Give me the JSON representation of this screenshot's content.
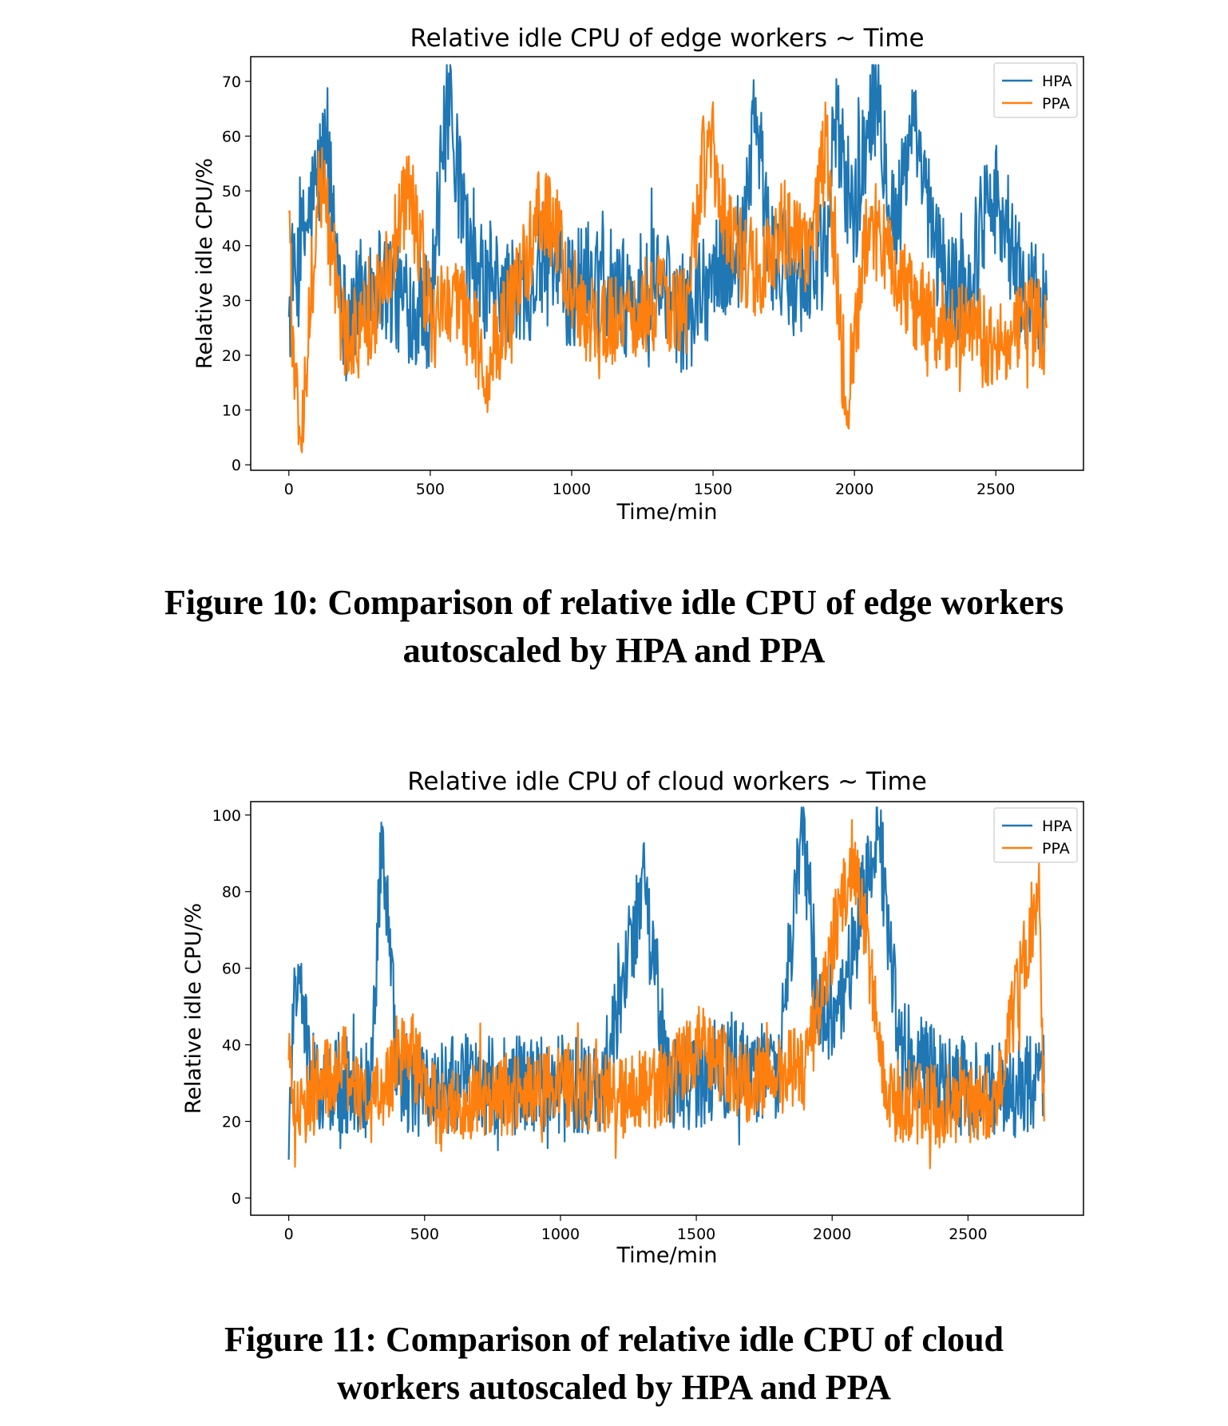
{
  "chart_data": [
    {
      "type": "line",
      "title": "Relative idle CPU of edge workers ~ Time",
      "xlabel": "Time/min",
      "ylabel": "Relative idle CPU/%",
      "xlim": [
        -135,
        2810
      ],
      "ylim": [
        -1,
        74.5
      ],
      "xticks": [
        0,
        500,
        1000,
        1500,
        2000,
        2500
      ],
      "yticks": [
        0,
        10,
        20,
        30,
        40,
        50,
        60,
        70
      ],
      "legend": "top-right",
      "grid": false,
      "n_points": 1100,
      "x_max": 2680,
      "series": [
        {
          "name": "HPA",
          "color": "#1f77b4",
          "anchors": [
            [
              0,
              27
            ],
            [
              60,
              43
            ],
            [
              130,
              58
            ],
            [
              200,
              26
            ],
            [
              300,
              35
            ],
            [
              400,
              30
            ],
            [
              500,
              28
            ],
            [
              560,
              66
            ],
            [
              650,
              34
            ],
            [
              800,
              30
            ],
            [
              900,
              37
            ],
            [
              1000,
              32
            ],
            [
              1100,
              36
            ],
            [
              1200,
              30
            ],
            [
              1300,
              33
            ],
            [
              1400,
              27
            ],
            [
              1500,
              35
            ],
            [
              1600,
              40
            ],
            [
              1650,
              67
            ],
            [
              1700,
              38
            ],
            [
              1800,
              34
            ],
            [
              1900,
              38
            ],
            [
              1930,
              63
            ],
            [
              2000,
              45
            ],
            [
              2070,
              71
            ],
            [
              2150,
              42
            ],
            [
              2200,
              62
            ],
            [
              2300,
              36
            ],
            [
              2400,
              30
            ],
            [
              2480,
              53
            ],
            [
              2600,
              30
            ],
            [
              2680,
              30
            ]
          ],
          "amplitude": 11
        },
        {
          "name": "PPA",
          "color": "#ff7f0e",
          "anchors": [
            [
              0,
              46
            ],
            [
              20,
              12
            ],
            [
              40,
              5
            ],
            [
              110,
              54
            ],
            [
              200,
              22
            ],
            [
              300,
              28
            ],
            [
              430,
              50
            ],
            [
              500,
              26
            ],
            [
              600,
              30
            ],
            [
              700,
              18
            ],
            [
              800,
              30
            ],
            [
              900,
              48
            ],
            [
              1000,
              32
            ],
            [
              1100,
              24
            ],
            [
              1200,
              28
            ],
            [
              1300,
              30
            ],
            [
              1400,
              27
            ],
            [
              1480,
              61
            ],
            [
              1550,
              42
            ],
            [
              1650,
              35
            ],
            [
              1750,
              43
            ],
            [
              1850,
              40
            ],
            [
              1900,
              60
            ],
            [
              1970,
              10
            ],
            [
              2050,
              45
            ],
            [
              2200,
              30
            ],
            [
              2300,
              26
            ],
            [
              2400,
              24
            ],
            [
              2500,
              22
            ],
            [
              2600,
              28
            ],
            [
              2680,
              25
            ]
          ],
          "amplitude": 9
        }
      ]
    },
    {
      "type": "line",
      "title": "Relative idle CPU of cloud workers ~ Time",
      "xlabel": "Time/min",
      "ylabel": "Relative idle CPU/%",
      "xlim": [
        -140,
        2925
      ],
      "ylim": [
        -4.5,
        103.5
      ],
      "xticks": [
        0,
        500,
        1000,
        1500,
        2000,
        2500
      ],
      "yticks": [
        0,
        20,
        40,
        60,
        80,
        100
      ],
      "legend": "top-right",
      "grid": false,
      "n_points": 1200,
      "x_max": 2780,
      "series": [
        {
          "name": "HPA",
          "color": "#1f77b4",
          "anchors": [
            [
              0,
              10
            ],
            [
              20,
              60
            ],
            [
              100,
              28
            ],
            [
              200,
              30
            ],
            [
              300,
              28
            ],
            [
              345,
              97
            ],
            [
              400,
              30
            ],
            [
              500,
              28
            ],
            [
              650,
              30
            ],
            [
              800,
              29
            ],
            [
              1000,
              30
            ],
            [
              1150,
              28
            ],
            [
              1310,
              84
            ],
            [
              1400,
              28
            ],
            [
              1600,
              34
            ],
            [
              1800,
              32
            ],
            [
              1890,
              97
            ],
            [
              1950,
              45
            ],
            [
              2050,
              55
            ],
            [
              2170,
              97
            ],
            [
              2250,
              40
            ],
            [
              2400,
              30
            ],
            [
              2600,
              28
            ],
            [
              2780,
              30
            ]
          ],
          "amplitude": 13
        },
        {
          "name": "PPA",
          "color": "#ff7f0e",
          "anchors": [
            [
              0,
              36
            ],
            [
              30,
              20
            ],
            [
              100,
              28
            ],
            [
              200,
              35
            ],
            [
              300,
              24
            ],
            [
              440,
              40
            ],
            [
              550,
              22
            ],
            [
              700,
              26
            ],
            [
              900,
              28
            ],
            [
              1000,
              30
            ],
            [
              1200,
              26
            ],
            [
              1400,
              30
            ],
            [
              1500,
              40
            ],
            [
              1700,
              30
            ],
            [
              1900,
              34
            ],
            [
              2080,
              91
            ],
            [
              2200,
              26
            ],
            [
              2400,
              24
            ],
            [
              2600,
              26
            ],
            [
              2760,
              81
            ],
            [
              2780,
              20
            ]
          ],
          "amplitude": 11
        }
      ]
    }
  ],
  "captions": {
    "fig10": {
      "line1": "Figure 10: Comparison of relative idle CPU of edge workers",
      "line2": "autoscaled by HPA and PPA"
    },
    "fig11": {
      "line1": "Figure 11: Comparison of relative idle CPU of cloud",
      "line2": "workers autoscaled by HPA and PPA"
    }
  }
}
